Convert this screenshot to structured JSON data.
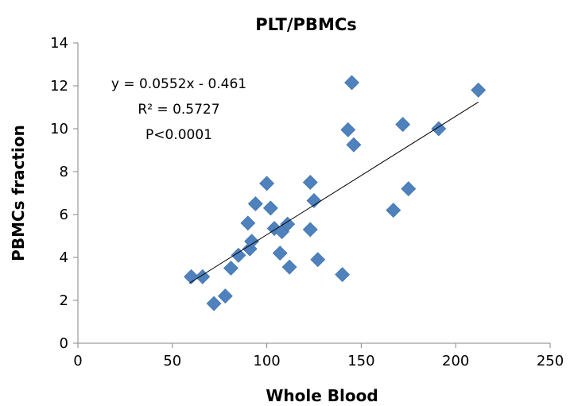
{
  "chart_data": {
    "type": "scatter",
    "title": "PLT/PBMCs",
    "xlabel": "Whole Blood",
    "ylabel": "PBMCs fraction",
    "xlim": [
      0,
      250
    ],
    "ylim": [
      0,
      14
    ],
    "xticks": [
      "0",
      "50",
      "100",
      "150",
      "200",
      "250"
    ],
    "yticks": [
      "0",
      "2",
      "4",
      "6",
      "8",
      "10",
      "12",
      "14"
    ],
    "grid": false,
    "marker_color": "#4F81BD",
    "points": [
      {
        "x": 60,
        "y": 3.1
      },
      {
        "x": 66,
        "y": 3.1
      },
      {
        "x": 72,
        "y": 1.85
      },
      {
        "x": 78,
        "y": 2.2
      },
      {
        "x": 81,
        "y": 3.5
      },
      {
        "x": 85,
        "y": 4.1
      },
      {
        "x": 90,
        "y": 5.6
      },
      {
        "x": 91,
        "y": 4.4
      },
      {
        "x": 92,
        "y": 4.75
      },
      {
        "x": 94,
        "y": 6.5
      },
      {
        "x": 100,
        "y": 7.45
      },
      {
        "x": 102,
        "y": 6.3
      },
      {
        "x": 104,
        "y": 5.35
      },
      {
        "x": 107,
        "y": 4.2
      },
      {
        "x": 108,
        "y": 5.2
      },
      {
        "x": 111,
        "y": 5.55
      },
      {
        "x": 112,
        "y": 3.55
      },
      {
        "x": 123,
        "y": 7.5
      },
      {
        "x": 123,
        "y": 5.3
      },
      {
        "x": 125,
        "y": 6.65
      },
      {
        "x": 127,
        "y": 3.9
      },
      {
        "x": 140,
        "y": 3.2
      },
      {
        "x": 143,
        "y": 9.95
      },
      {
        "x": 145,
        "y": 12.15
      },
      {
        "x": 146,
        "y": 9.25
      },
      {
        "x": 167,
        "y": 6.2
      },
      {
        "x": 172,
        "y": 10.2
      },
      {
        "x": 175,
        "y": 7.2
      },
      {
        "x": 191,
        "y": 10.0
      },
      {
        "x": 212,
        "y": 11.8
      }
    ],
    "trendline": {
      "slope": 0.0552,
      "intercept": -0.461,
      "x_range": [
        59,
        212
      ],
      "color": "#000000"
    },
    "annotations": [
      "y = 0.0552x - 0.461",
      "R² = 0.5727",
      "P<0.0001"
    ]
  }
}
